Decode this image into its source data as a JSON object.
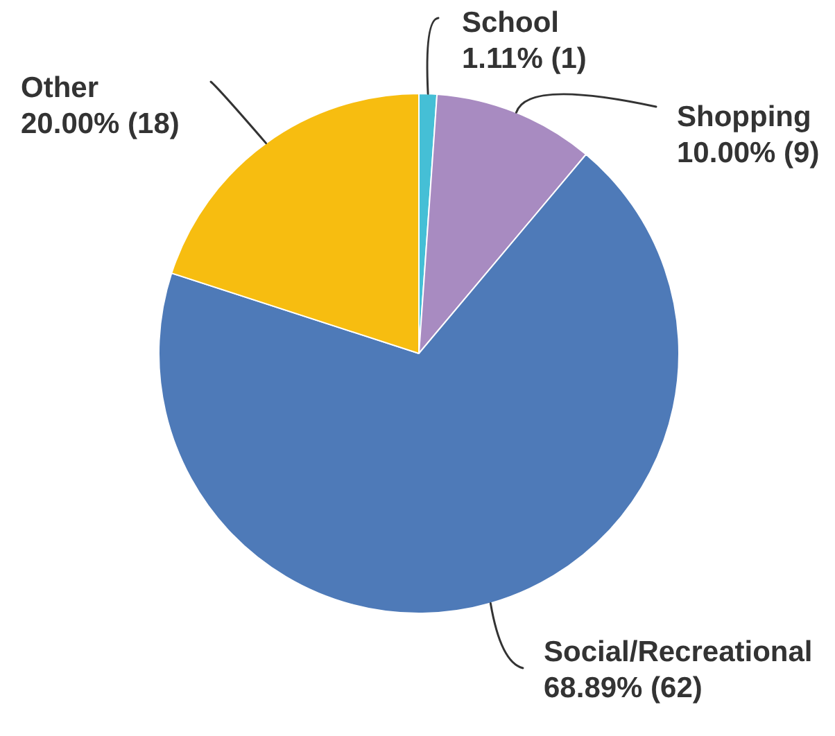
{
  "chart_data": {
    "type": "pie",
    "categories": [
      "School",
      "Shopping",
      "Social/Recreational",
      "Other"
    ],
    "values": [
      1,
      9,
      62,
      18
    ],
    "colors": [
      "#45bfd6",
      "#a88bc1",
      "#4e7ab8",
      "#f7bd10"
    ],
    "value_labels": [
      "1.11% (1)",
      "10.00% (9)",
      "68.89% (62)",
      "20.00% (18)"
    ]
  }
}
